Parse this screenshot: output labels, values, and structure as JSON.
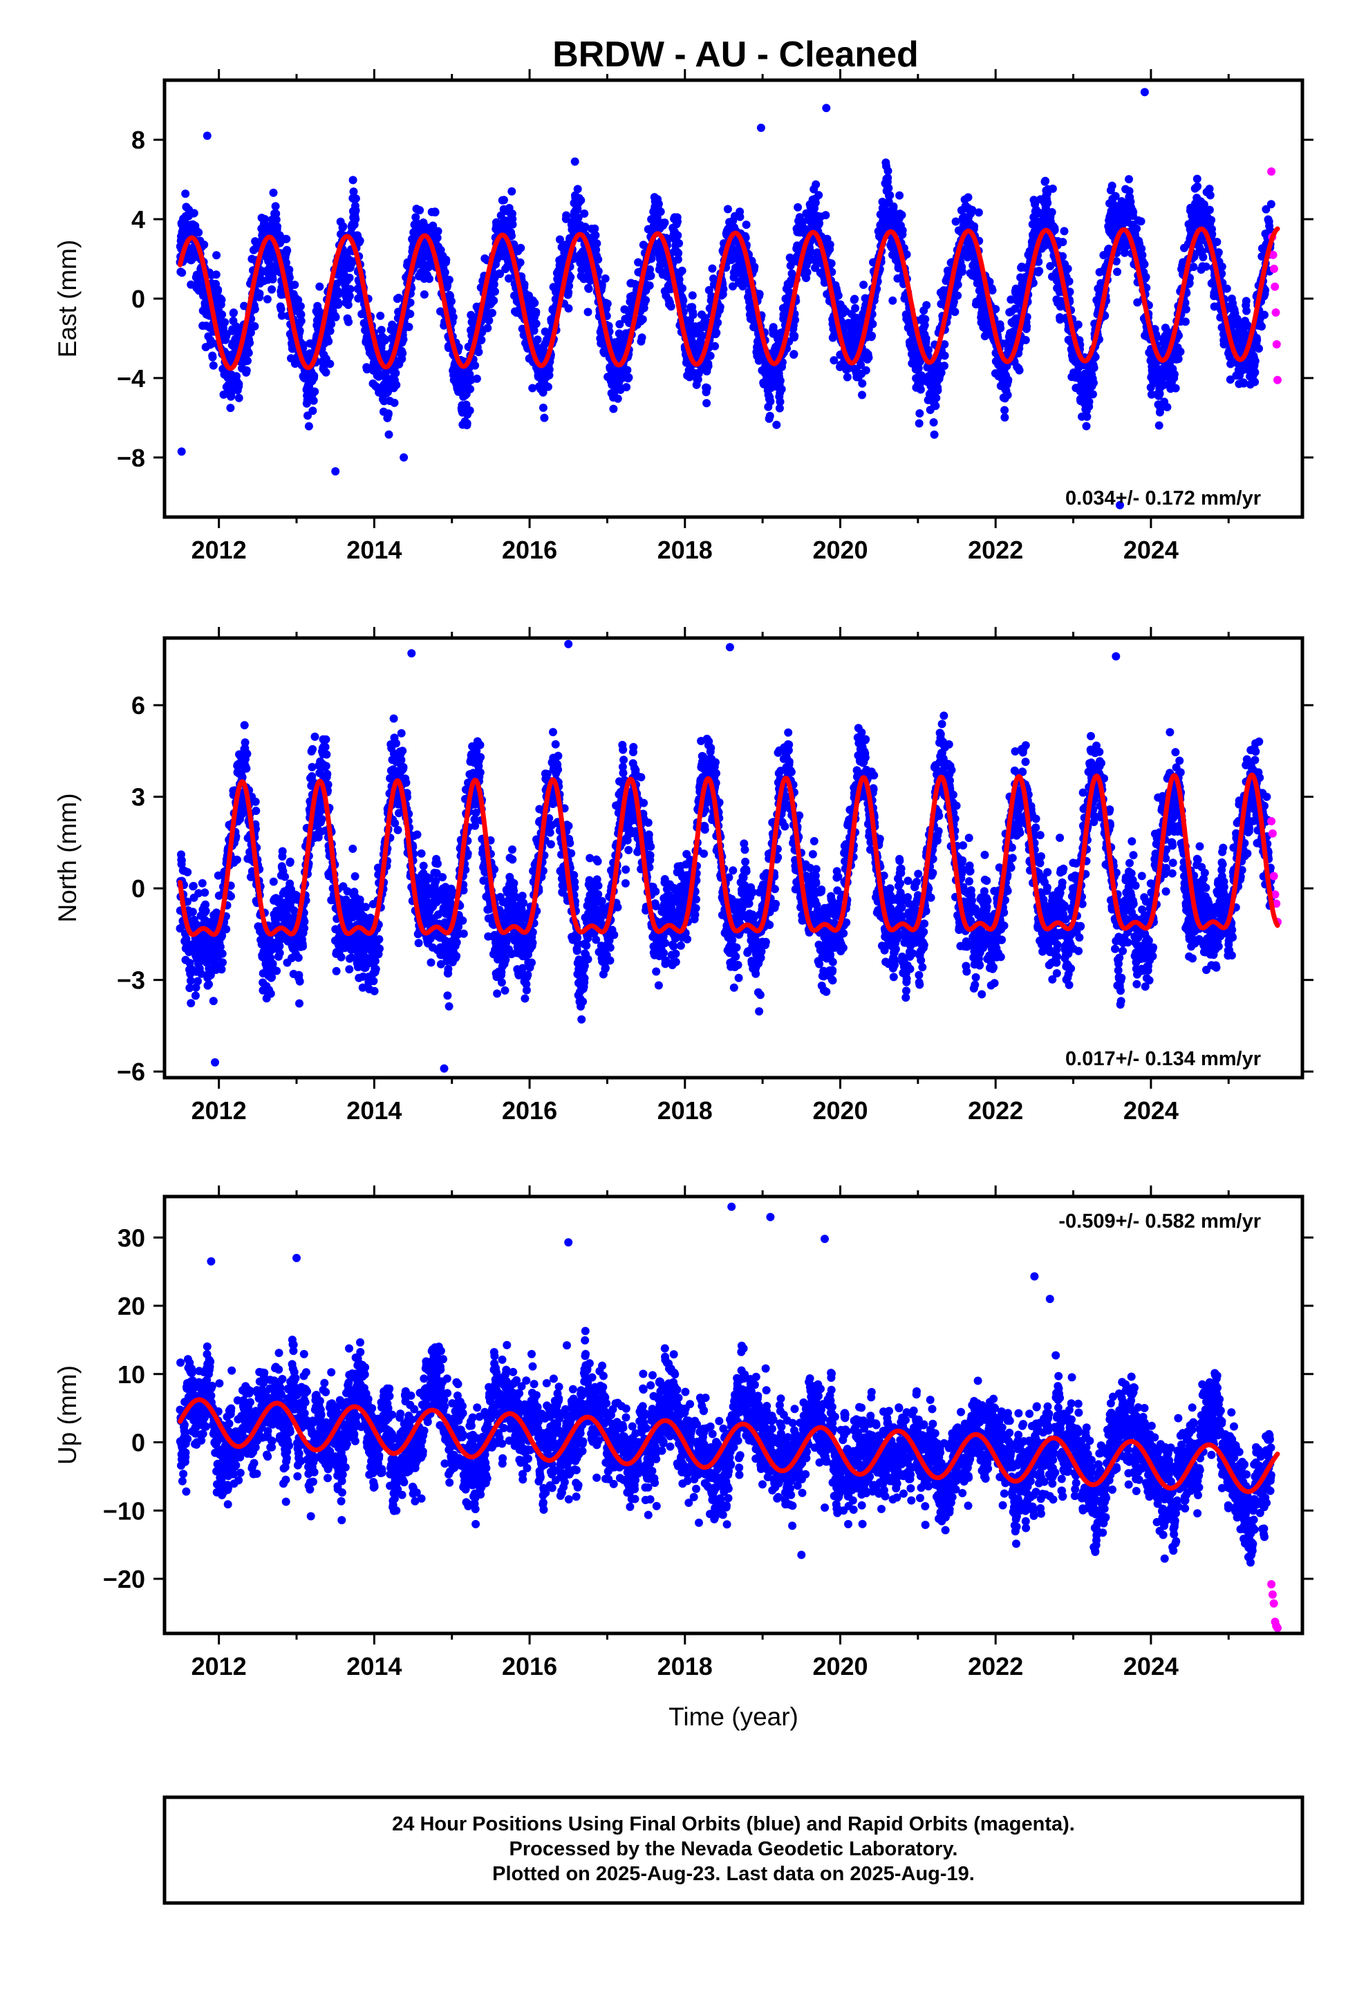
{
  "title": "BRDW  - AU - Cleaned",
  "colors": {
    "final": "#0000ff",
    "rapid": "#ff00ff",
    "model": "#ff0000",
    "frame": "#000000"
  },
  "footer": {
    "line1": "24 Hour Positions Using Final Orbits (blue) and Rapid Orbits (magenta).",
    "line2": "Processed by the Nevada Geodetic Laboratory.",
    "line3": "Plotted on 2025-Aug-23. Last data on 2025-Aug-19."
  },
  "chart_data": [
    {
      "type": "scatter",
      "component": "east",
      "ylabel": "East (mm)",
      "xlabel": "",
      "rate": "0.034+/- 0.172 mm/yr",
      "rate_position": "bottom-right",
      "xlim": [
        2011.3,
        2025.95
      ],
      "ylim": [
        -11,
        11
      ],
      "xticks": [
        2012,
        2014,
        2016,
        2018,
        2020,
        2022,
        2024
      ],
      "xtick_labels": [
        "2012",
        "2014",
        "2016",
        "2018",
        "2020",
        "2022",
        "2024"
      ],
      "yticks": [
        -8,
        -4,
        0,
        4,
        8
      ],
      "ytick_labels": [
        "−8",
        "−4",
        "0",
        "4",
        "8"
      ],
      "data_span": [
        2011.5,
        2025.55
      ],
      "rapid_span": [
        2025.55,
        2025.63
      ],
      "rapid_values": [
        6.4,
        3.1,
        2.2,
        1.5,
        0.6,
        -0.7,
        -2.3,
        -4.1
      ],
      "seasonal": {
        "annual_amp": 3.3,
        "annual_phase": 2011.65,
        "semiannual_amp": 0.0,
        "semiannual_phase": 0.0,
        "offset": 0.0,
        "trend": 0.034,
        "ref_year": 2018.5
      },
      "scatter_sd": 1.4,
      "outliers": [
        {
          "x": 2011.52,
          "y": -7.7
        },
        {
          "x": 2011.85,
          "y": 8.2
        },
        {
          "x": 2013.5,
          "y": -8.7
        },
        {
          "x": 2014.38,
          "y": -8.0
        },
        {
          "x": 2019.82,
          "y": 9.6
        },
        {
          "x": 2023.92,
          "y": 10.4
        },
        {
          "x": 2023.6,
          "y": -10.4
        },
        {
          "x": 2018.98,
          "y": 8.6
        }
      ]
    },
    {
      "type": "scatter",
      "component": "north",
      "ylabel": "North (mm)",
      "xlabel": "",
      "rate": "0.017+/- 0.134 mm/yr",
      "rate_position": "bottom-right",
      "xlim": [
        2011.3,
        2025.95
      ],
      "ylim": [
        -6.2,
        8.2
      ],
      "xticks": [
        2012,
        2014,
        2016,
        2018,
        2020,
        2022,
        2024
      ],
      "xtick_labels": [
        "2012",
        "2014",
        "2016",
        "2018",
        "2020",
        "2022",
        "2024"
      ],
      "yticks": [
        -6,
        -3,
        0,
        3,
        6
      ],
      "ytick_labels": [
        "−6",
        "−3",
        "0",
        "3",
        "6"
      ],
      "data_span": [
        2011.5,
        2025.55
      ],
      "rapid_span": [
        2025.55,
        2025.63
      ],
      "rapid_values": [
        2.2,
        1.8,
        0.4,
        -0.2,
        -0.5,
        -1.1
      ],
      "seasonal": {
        "annual_amp": 2.4,
        "annual_phase": 2011.3,
        "semiannual_amp": 0.9,
        "semiannual_phase": 2011.3,
        "offset": 0.3,
        "trend": 0.017,
        "ref_year": 2018.5
      },
      "scatter_sd": 1.1,
      "outliers": [
        {
          "x": 2014.48,
          "y": 7.7
        },
        {
          "x": 2016.5,
          "y": 8.0
        },
        {
          "x": 2018.58,
          "y": 7.9
        },
        {
          "x": 2014.9,
          "y": -5.9
        },
        {
          "x": 2023.55,
          "y": 7.6
        },
        {
          "x": 2011.95,
          "y": -5.7
        }
      ]
    },
    {
      "type": "scatter",
      "component": "up",
      "ylabel": "Up (mm)",
      "xlabel": "Time (year)",
      "rate": "-0.509+/- 0.582 mm/yr",
      "rate_position": "top-right",
      "xlim": [
        2011.3,
        2025.95
      ],
      "ylim": [
        -28,
        36
      ],
      "xticks": [
        2012,
        2014,
        2016,
        2018,
        2020,
        2022,
        2024
      ],
      "xtick_labels": [
        "2012",
        "2014",
        "2016",
        "2018",
        "2020",
        "2022",
        "2024"
      ],
      "yticks": [
        -20,
        -10,
        0,
        10,
        20,
        30
      ],
      "ytick_labels": [
        "−20",
        "−10",
        "0",
        "10",
        "20",
        "30"
      ],
      "data_span": [
        2011.5,
        2025.55
      ],
      "rapid_span": [
        2025.55,
        2025.63
      ],
      "rapid_values": [
        -20.8,
        -22.3,
        -23.6,
        -26.3,
        -26.9,
        -27.2
      ],
      "seasonal": {
        "annual_amp": 3.3,
        "annual_phase": 2011.75,
        "semiannual_amp": 0.0,
        "semiannual_phase": 0.0,
        "offset": -0.5,
        "trend": -0.509,
        "ref_year": 2018.5
      },
      "scatter_sd": 4.8,
      "outliers": [
        {
          "x": 2018.6,
          "y": 34.5
        },
        {
          "x": 2019.1,
          "y": 33.0
        },
        {
          "x": 2019.8,
          "y": 29.8
        },
        {
          "x": 2011.9,
          "y": 26.5
        },
        {
          "x": 2013.0,
          "y": 27.0
        },
        {
          "x": 2016.5,
          "y": 29.3
        },
        {
          "x": 2022.5,
          "y": 24.3
        },
        {
          "x": 2022.7,
          "y": 21.0
        },
        {
          "x": 2019.5,
          "y": -16.5
        }
      ]
    }
  ]
}
